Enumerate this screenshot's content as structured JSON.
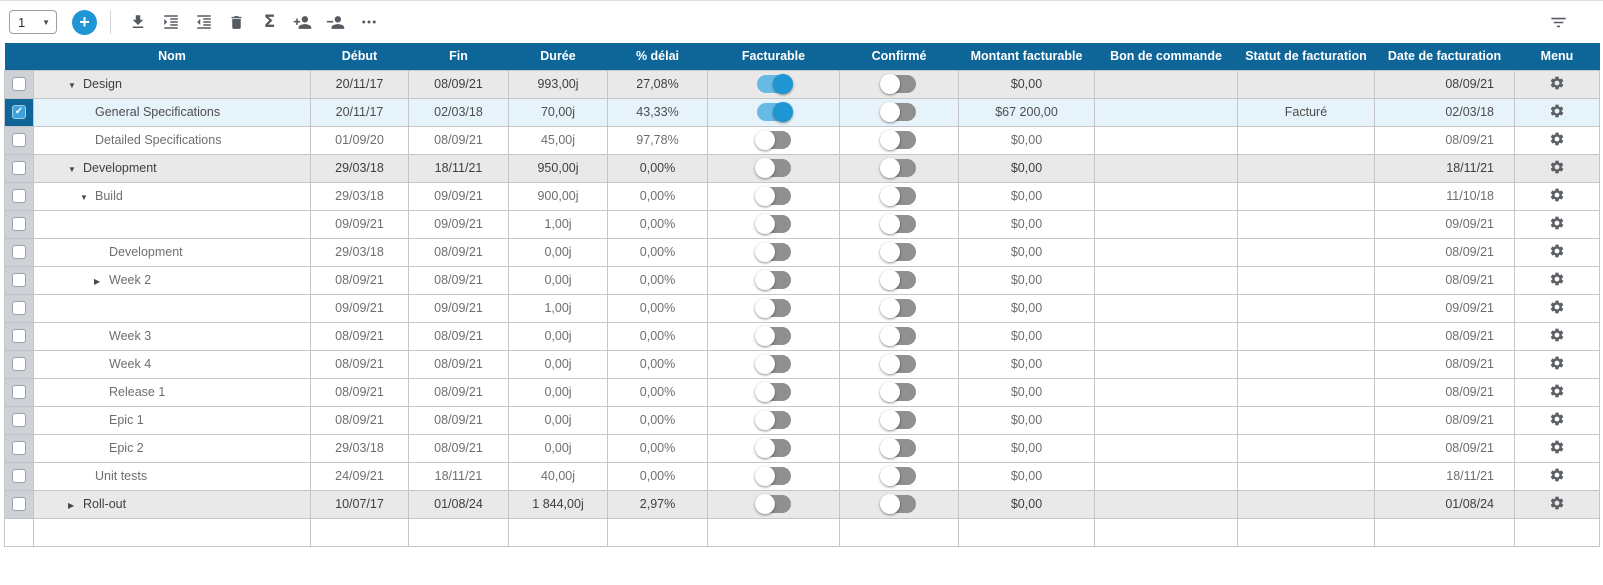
{
  "toolbar": {
    "row_selector_value": "1",
    "add_glyph": "+",
    "sigma_glyph": "Σ",
    "icons": {
      "select_arrow": "chevron-down-icon",
      "add": "plus-icon",
      "insert": "insert-task-icon",
      "indent": "indent-icon",
      "outdent": "outdent-icon",
      "delete": "trash-icon",
      "sum": "sigma-icon",
      "add_assignment": "add-user-icon",
      "remove_assignment": "remove-user-icon",
      "more": "ellipsis-icon",
      "filter": "filter-icon",
      "row_menu": "gear-icon",
      "expanded_glyph": "▼",
      "collapsed_glyph": "▶",
      "checked_glyph": "✓"
    }
  },
  "columns": [
    "Nom",
    "Début",
    "Fin",
    "Durée",
    "% délai",
    "Facturable",
    "Confirmé",
    "Montant facturable",
    "Bon de commande",
    "Statut de facturation",
    "Date de facturation",
    "Menu"
  ],
  "rows": [
    {
      "name": "Design",
      "level": 0,
      "arrow": "expanded",
      "group": true,
      "debut": "20/11/17",
      "fin": "08/09/21",
      "duree": "993,00j",
      "delai": "27,08%",
      "facturable": true,
      "confirme": false,
      "montant": "$0,00",
      "bon": "",
      "statut": "",
      "datefact": "08/09/21"
    },
    {
      "name": "General Specifications",
      "level": 1,
      "selected": true,
      "checked": true,
      "debut": "20/11/17",
      "fin": "02/03/18",
      "duree": "70,00j",
      "delai": "43,33%",
      "facturable": true,
      "confirme": false,
      "montant": "$67 200,00",
      "bon": "",
      "statut": "Facturé",
      "datefact": "02/03/18"
    },
    {
      "name": "Detailed Specifications",
      "level": 1,
      "debut": "01/09/20",
      "fin": "08/09/21",
      "duree": "45,00j",
      "delai": "97,78%",
      "facturable": false,
      "confirme": false,
      "montant": "$0,00",
      "bon": "",
      "statut": "",
      "datefact": "08/09/21"
    },
    {
      "name": "Development",
      "level": 0,
      "arrow": "expanded",
      "group": true,
      "debut": "29/03/18",
      "fin": "18/11/21",
      "duree": "950,00j",
      "delai": "0,00%",
      "facturable": false,
      "confirme": false,
      "montant": "$0,00",
      "bon": "",
      "statut": "",
      "datefact": "18/11/21"
    },
    {
      "name": "Build",
      "level": 1,
      "arrow": "expanded",
      "debut": "29/03/18",
      "fin": "09/09/21",
      "duree": "900,00j",
      "delai": "0,00%",
      "facturable": false,
      "confirme": false,
      "montant": "$0,00",
      "bon": "",
      "statut": "",
      "datefact": "11/10/18"
    },
    {
      "name": "",
      "level": 2,
      "debut": "09/09/21",
      "fin": "09/09/21",
      "duree": "1,00j",
      "delai": "0,00%",
      "facturable": false,
      "confirme": false,
      "montant": "$0,00",
      "bon": "",
      "statut": "",
      "datefact": "09/09/21"
    },
    {
      "name": "Development",
      "level": 2,
      "debut": "29/03/18",
      "fin": "08/09/21",
      "duree": "0,00j",
      "delai": "0,00%",
      "facturable": false,
      "confirme": false,
      "montant": "$0,00",
      "bon": "",
      "statut": "",
      "datefact": "08/09/21"
    },
    {
      "name": "Week 2",
      "level": 2,
      "arrow": "collapsed",
      "debut": "08/09/21",
      "fin": "08/09/21",
      "duree": "0,00j",
      "delai": "0,00%",
      "facturable": false,
      "confirme": false,
      "montant": "$0,00",
      "bon": "",
      "statut": "",
      "datefact": "08/09/21"
    },
    {
      "name": "",
      "level": 2,
      "debut": "09/09/21",
      "fin": "09/09/21",
      "duree": "1,00j",
      "delai": "0,00%",
      "facturable": false,
      "confirme": false,
      "montant": "$0,00",
      "bon": "",
      "statut": "",
      "datefact": "09/09/21"
    },
    {
      "name": "Week 3",
      "level": 2,
      "debut": "08/09/21",
      "fin": "08/09/21",
      "duree": "0,00j",
      "delai": "0,00%",
      "facturable": false,
      "confirme": false,
      "montant": "$0,00",
      "bon": "",
      "statut": "",
      "datefact": "08/09/21"
    },
    {
      "name": "Week 4",
      "level": 2,
      "debut": "08/09/21",
      "fin": "08/09/21",
      "duree": "0,00j",
      "delai": "0,00%",
      "facturable": false,
      "confirme": false,
      "montant": "$0,00",
      "bon": "",
      "statut": "",
      "datefact": "08/09/21"
    },
    {
      "name": "Release 1",
      "level": 2,
      "debut": "08/09/21",
      "fin": "08/09/21",
      "duree": "0,00j",
      "delai": "0,00%",
      "facturable": false,
      "confirme": false,
      "montant": "$0,00",
      "bon": "",
      "statut": "",
      "datefact": "08/09/21"
    },
    {
      "name": "Epic 1",
      "level": 2,
      "debut": "08/09/21",
      "fin": "08/09/21",
      "duree": "0,00j",
      "delai": "0,00%",
      "facturable": false,
      "confirme": false,
      "montant": "$0,00",
      "bon": "",
      "statut": "",
      "datefact": "08/09/21"
    },
    {
      "name": "Epic 2",
      "level": 2,
      "debut": "29/03/18",
      "fin": "08/09/21",
      "duree": "0,00j",
      "delai": "0,00%",
      "facturable": false,
      "confirme": false,
      "montant": "$0,00",
      "bon": "",
      "statut": "",
      "datefact": "08/09/21"
    },
    {
      "name": "Unit tests",
      "level": 1,
      "debut": "24/09/21",
      "fin": "18/11/21",
      "duree": "40,00j",
      "delai": "0,00%",
      "facturable": false,
      "confirme": false,
      "montant": "$0,00",
      "bon": "",
      "statut": "",
      "datefact": "18/11/21"
    },
    {
      "name": "Roll-out",
      "level": 0,
      "arrow": "collapsed",
      "group": true,
      "debut": "10/07/17",
      "fin": "01/08/24",
      "duree": "1 844,00j",
      "delai": "2,97%",
      "facturable": false,
      "confirme": false,
      "montant": "$0,00",
      "bon": "",
      "statut": "",
      "datefact": "01/08/24"
    },
    {
      "name": "",
      "level": 0,
      "empty": true,
      "debut": "",
      "fin": "",
      "duree": "",
      "delai": "",
      "montant": "",
      "bon": "",
      "statut": "",
      "datefact": ""
    }
  ],
  "colors": {
    "header_bg": "#0e6598",
    "accent_blue": "#1e96d3",
    "toggle_on_track": "#68bae6",
    "toggle_on_knob": "#1e96d3",
    "toggle_off_track": "#909090",
    "selected_row_bg": "#e7f3fb",
    "group_row_bg": "#e9e9e9",
    "checkbox_strip_bg": "#ced1d6",
    "selected_checkbox_bg": "#3fa3da"
  }
}
